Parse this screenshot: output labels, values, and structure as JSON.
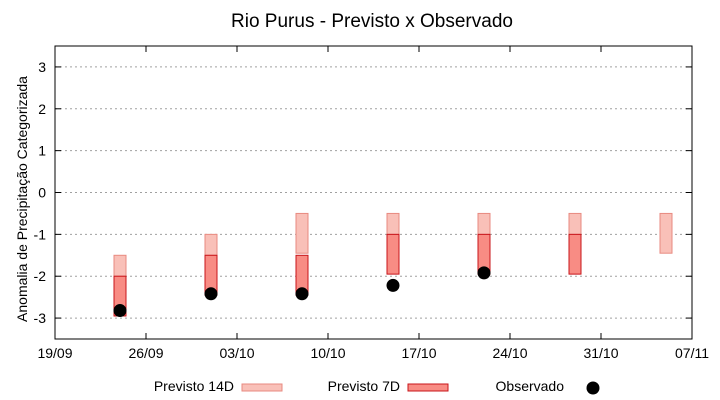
{
  "chart_data": {
    "type": "box-range",
    "title": "Rio Purus - Previsto x Observado",
    "ylabel": "Anomalia de Precipitação Categorizada",
    "xlabel": "",
    "ylim": [
      -3.5,
      3.5
    ],
    "yticks": [
      3,
      2,
      1,
      0,
      -1,
      -2,
      -3
    ],
    "ytick_labels": [
      "3",
      "2",
      "1",
      "0",
      "-1",
      "-2",
      "-3"
    ],
    "xticks": [
      {
        "label": "19/09",
        "day": 0
      },
      {
        "label": "26/09",
        "day": 7
      },
      {
        "label": "03/10",
        "day": 14
      },
      {
        "label": "10/10",
        "day": 21
      },
      {
        "label": "17/10",
        "day": 28
      },
      {
        "label": "24/10",
        "day": 35
      },
      {
        "label": "31/10",
        "day": 42
      },
      {
        "label": "07/11",
        "day": 49
      }
    ],
    "xlim_days": [
      0,
      49
    ],
    "grid": true,
    "colors": {
      "previsto14_fill": "#f9c0b8",
      "previsto14_stroke": "#e88a80",
      "previsto7_fill": "#f88c84",
      "previsto7_stroke": "#c8141a",
      "observado": "#000000"
    },
    "series": [
      {
        "name": "Previsto 14D",
        "kind": "range",
        "points": [
          {
            "date": "24/09",
            "low": -2.0,
            "high": -1.5
          },
          {
            "date": "01/10",
            "low": -1.5,
            "high": -1.0
          },
          {
            "date": "08/10",
            "low": -1.45,
            "high": -0.5
          },
          {
            "date": "15/10",
            "low": -1.0,
            "high": -0.5
          },
          {
            "date": "22/10",
            "low": -1.0,
            "high": -0.5
          },
          {
            "date": "29/10",
            "low": -1.0,
            "high": -0.5
          },
          {
            "date": "05/11",
            "low": -1.45,
            "high": -0.5
          }
        ]
      },
      {
        "name": "Previsto 7D",
        "kind": "range",
        "points": [
          {
            "date": "24/09",
            "low": -2.95,
            "high": -2.0
          },
          {
            "date": "01/10",
            "low": -2.45,
            "high": -1.5
          },
          {
            "date": "08/10",
            "low": -2.45,
            "high": -1.5
          },
          {
            "date": "15/10",
            "low": -1.95,
            "high": -1.0
          },
          {
            "date": "22/10",
            "low": -1.95,
            "high": -1.0
          },
          {
            "date": "29/10",
            "low": -1.95,
            "high": -1.0
          }
        ]
      },
      {
        "name": "Observado",
        "kind": "point",
        "points": [
          {
            "date": "24/09",
            "value": -2.82
          },
          {
            "date": "01/10",
            "value": -2.42
          },
          {
            "date": "08/10",
            "value": -2.42
          },
          {
            "date": "15/10",
            "value": -2.22
          },
          {
            "date": "22/10",
            "value": -1.92
          }
        ]
      }
    ],
    "legend_placement": "bottom"
  }
}
